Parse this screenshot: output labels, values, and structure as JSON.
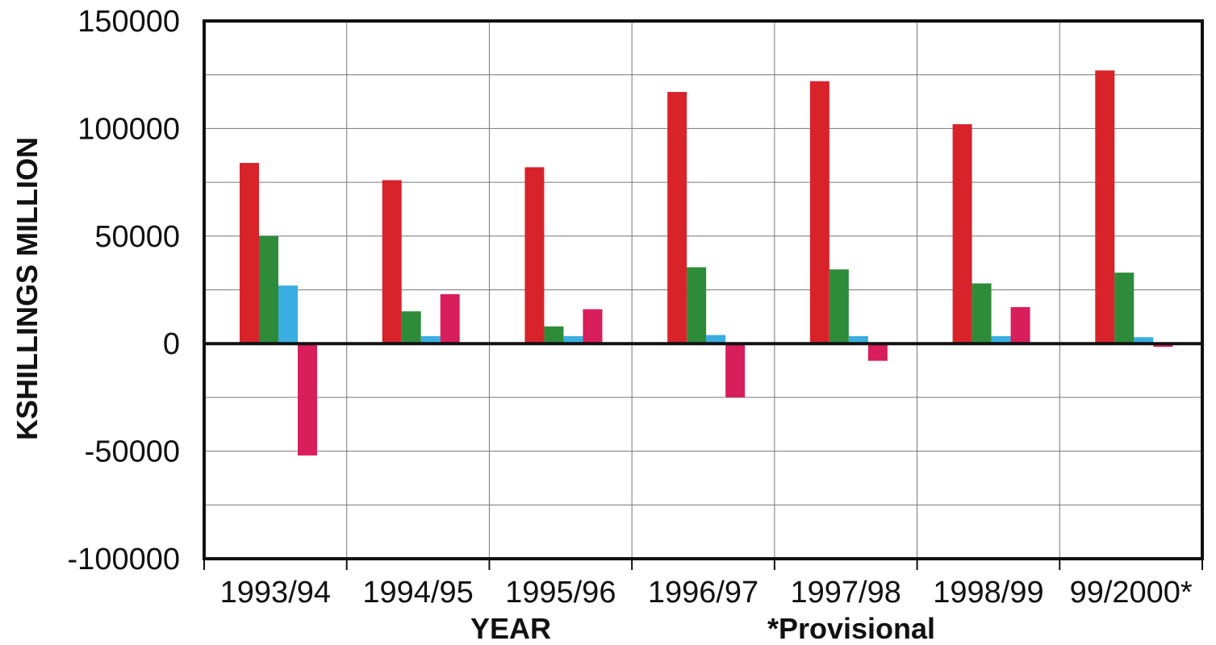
{
  "chart_data": {
    "type": "bar",
    "title": "",
    "xlabel": "YEAR",
    "ylabel": "KSHILLINGS MILLION",
    "note": "*Provisional",
    "categories": [
      "1993/94",
      "1994/95",
      "1995/96",
      "1996/97",
      "1997/98",
      "1998/99",
      "99/2000*"
    ],
    "ylim": [
      -100000,
      150000
    ],
    "yticks": [
      150000,
      100000,
      50000,
      0,
      -50000,
      -100000
    ],
    "ytick_labels": [
      "150000",
      "100000",
      "50000",
      "0",
      "-50000",
      "-100000"
    ],
    "grid": true,
    "legend": "none",
    "series": [
      {
        "color": "#d8232a",
        "values": [
          84000,
          76000,
          82000,
          117000,
          122000,
          102000,
          127000
        ]
      },
      {
        "color": "#2e8b3a",
        "values": [
          50000,
          15000,
          8000,
          35500,
          34500,
          28000,
          33000
        ]
      },
      {
        "color": "#3aaee0",
        "values": [
          27000,
          3500,
          3500,
          4000,
          3500,
          3500,
          3000
        ]
      },
      {
        "color": "#d81e5b",
        "values": [
          -52000,
          23000,
          16000,
          -25000,
          -8000,
          17000,
          -1500
        ]
      }
    ]
  }
}
